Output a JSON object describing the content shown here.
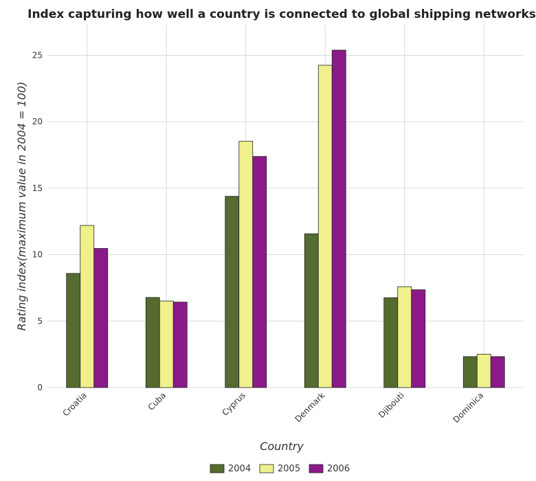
{
  "chart_data": {
    "type": "bar",
    "title": "Index capturing how well a country is connected to global shipping networks",
    "xlabel": "Country",
    "ylabel": "Rating index(maximum value in 2004 = 100)",
    "categories": [
      "Croatia",
      "Cuba",
      "Cyprus",
      "Denmark",
      "Djibouti",
      "Dominica"
    ],
    "series": [
      {
        "name": "2004",
        "color": "#556b2f",
        "values": [
          8.59,
          6.78,
          14.39,
          11.57,
          6.76,
          2.33
        ]
      },
      {
        "name": "2005",
        "color": "#f0f08c",
        "values": [
          12.2,
          6.51,
          18.53,
          24.25,
          7.59,
          2.51
        ]
      },
      {
        "name": "2006",
        "color": "#8b1a89",
        "values": [
          10.47,
          6.43,
          17.39,
          25.39,
          7.36,
          2.33
        ]
      }
    ],
    "ylim": [
      0,
      27.3
    ],
    "yticks": [
      0,
      5,
      10,
      15,
      20,
      25
    ],
    "grid": true,
    "legend_position": "bottom"
  }
}
